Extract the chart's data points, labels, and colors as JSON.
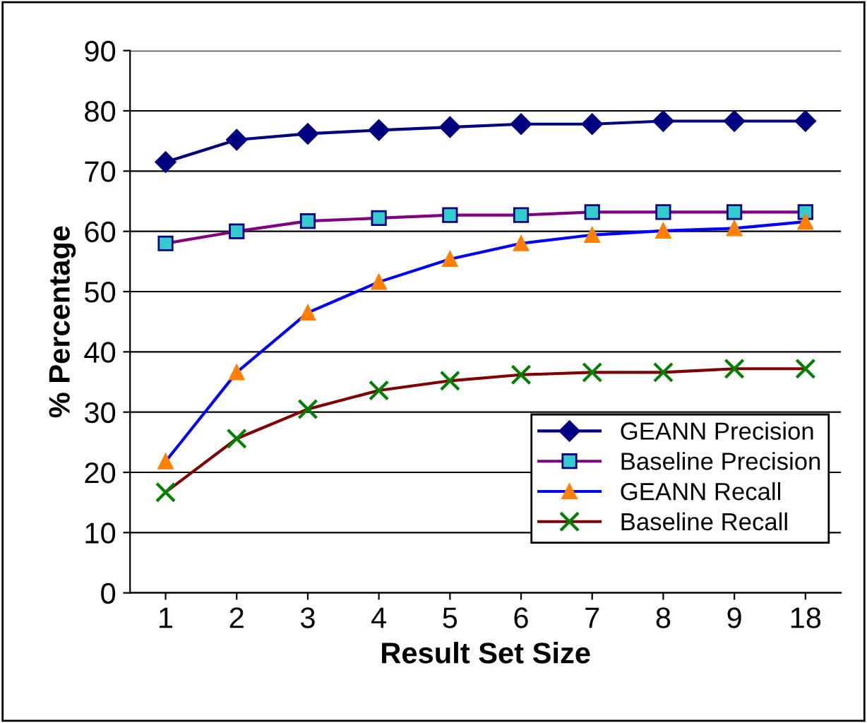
{
  "chart_data": {
    "type": "line",
    "xlabel": "Result Set Size",
    "ylabel": "% Percentage",
    "categories": [
      "1",
      "2",
      "3",
      "4",
      "5",
      "6",
      "7",
      "8",
      "9",
      "18"
    ],
    "series": [
      {
        "name": "GEANN Precision",
        "color": "#000080",
        "marker": "diamond",
        "values": [
          71.5,
          75.2,
          76.2,
          76.8,
          77.3,
          77.8,
          77.8,
          78.3,
          78.3,
          78.3
        ]
      },
      {
        "name": "Baseline Precision",
        "color": "#800080",
        "marker": "square",
        "values": [
          58,
          60,
          61.7,
          62.2,
          62.7,
          62.7,
          63.2,
          63.2,
          63.2,
          63.2
        ]
      },
      {
        "name": "GEANN Recall",
        "color": "#0000ff",
        "marker": "triangle",
        "values": [
          21.8,
          36.6,
          46.5,
          51.6,
          55.4,
          58,
          59.4,
          60.1,
          60.5,
          61.6
        ]
      },
      {
        "name": "Baseline Recall",
        "color": "#800000",
        "marker": "cross",
        "values": [
          16.7,
          25.6,
          30.5,
          33.6,
          35.2,
          36.2,
          36.6,
          36.6,
          37.2,
          37.2
        ]
      }
    ],
    "ylim": [
      0,
      90
    ],
    "yticks": [
      0,
      10,
      20,
      30,
      40,
      50,
      60,
      70,
      80,
      90
    ],
    "grid": "y",
    "legend": "bottom right"
  }
}
